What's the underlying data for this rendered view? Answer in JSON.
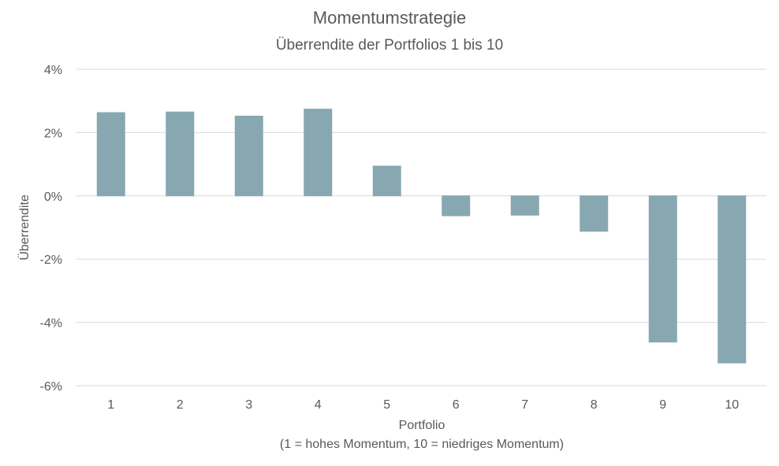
{
  "chart_data": {
    "type": "bar",
    "title": "Momentumstrategie",
    "subtitle": "Überrendite der Portfolios 1 bis 10",
    "xlabel": "Portfolio",
    "xlabel_note": "(1 = hohes Momentum, 10 = niedriges Momentum)",
    "ylabel": "Überrendite",
    "categories": [
      "1",
      "2",
      "3",
      "4",
      "5",
      "6",
      "7",
      "8",
      "9",
      "10"
    ],
    "values": [
      2.63,
      2.65,
      2.52,
      2.74,
      0.94,
      -0.63,
      -0.61,
      -1.12,
      -4.62,
      -5.28
    ],
    "y_ticks": [
      4,
      2,
      0,
      -2,
      -4,
      -6
    ],
    "y_tick_labels": [
      "4%",
      "2%",
      "0%",
      "-2%",
      "-4%",
      "-6%"
    ],
    "ylim": [
      -6,
      4
    ],
    "grid": true,
    "bar_color": "#87a8b0"
  }
}
